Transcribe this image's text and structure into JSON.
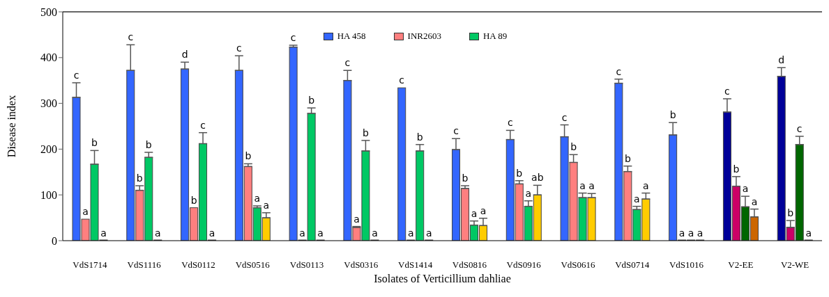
{
  "chart_data": {
    "type": "bar",
    "ylabel": "Disease index",
    "xlabel": "Isolates of Verticillium dahliae",
    "categories": [
      "VdS1714",
      "VdS1116",
      "VdS0112",
      "VdS0516",
      "VdS0113",
      "VdS0316",
      "VdS1414",
      "VdS0816",
      "VdS0916",
      "VdS0616",
      "VdS0714",
      "VdS1016",
      "V2-EE",
      "V2-WE"
    ],
    "ylim": [
      0,
      500
    ],
    "yticks": [
      0,
      100,
      200,
      300,
      400,
      500
    ],
    "grid": false,
    "legend": "top",
    "series": [
      {
        "name": "HA 458",
        "color": "#3366ff",
        "colors": [
          "#3366ff",
          "#3366ff",
          "#3366ff",
          "#3366ff",
          "#3366ff",
          "#3366ff",
          "#3366ff",
          "#3366ff",
          "#3366ff",
          "#3366ff",
          "#3366ff",
          "#3366ff",
          "#000099",
          "#000099"
        ],
        "values": [
          313,
          372,
          375,
          372,
          423,
          350,
          334,
          199,
          221,
          227,
          344,
          231,
          281,
          359
        ],
        "errors": [
          [
            313,
            345
          ],
          [
            372,
            428
          ],
          [
            375,
            390
          ],
          [
            372,
            404
          ],
          [
            423,
            427
          ],
          [
            350,
            372
          ],
          null,
          [
            199,
            223
          ],
          [
            221,
            241
          ],
          [
            227,
            253
          ],
          [
            344,
            353
          ],
          [
            231,
            258
          ],
          [
            281,
            310
          ],
          [
            359,
            378
          ]
        ],
        "value_labels": [
          "c",
          "c",
          "d",
          "c",
          "c",
          "c",
          "c",
          "c",
          "c",
          "c",
          "c",
          "b",
          "c",
          "d"
        ]
      },
      {
        "name": "INR2603",
        "color": "#ff7f7f",
        "colors": [
          "#ff7f7f",
          "#ff7f7f",
          "#ff7f7f",
          "#ff7f7f",
          "#ff7f7f",
          "#ff7f7f",
          "#ff7f7f",
          "#ff7f7f",
          "#ff7f7f",
          "#ff7f7f",
          "#ff7f7f",
          "#ff7f7f",
          "#cc0066",
          "#cc0066"
        ],
        "values": [
          47,
          110,
          72,
          162,
          0,
          29,
          0,
          114,
          124,
          171,
          151,
          0,
          119,
          29
        ],
        "errors": [
          null,
          [
            110,
            120
          ],
          null,
          [
            162,
            168
          ],
          null,
          [
            29,
            31
          ],
          null,
          [
            114,
            120
          ],
          [
            124,
            131
          ],
          [
            171,
            188
          ],
          [
            151,
            163
          ],
          null,
          [
            119,
            140
          ],
          [
            29,
            44
          ]
        ],
        "value_labels": [
          "a",
          "b",
          "b",
          "b",
          "a",
          "a",
          "a",
          "b",
          "b",
          "b",
          "b",
          "a",
          "b",
          "b"
        ]
      },
      {
        "name": "HA 89",
        "color": "#00c864",
        "colors": [
          "#00c864",
          "#00c864",
          "#00c864",
          "#00c864",
          "#00c864",
          "#00c864",
          "#00c864",
          "#00c864",
          "#00c864",
          "#00c864",
          "#00c864",
          "#00c864",
          "#006600",
          "#006600"
        ],
        "values": [
          167,
          182,
          212,
          72,
          278,
          196,
          196,
          34,
          75,
          94,
          68,
          0,
          74,
          210
        ],
        "errors": [
          [
            167,
            197
          ],
          [
            182,
            193
          ],
          [
            212,
            236
          ],
          [
            72,
            76
          ],
          [
            278,
            290
          ],
          [
            196,
            219
          ],
          [
            196,
            210
          ],
          [
            34,
            43
          ],
          [
            75,
            87
          ],
          [
            94,
            104
          ],
          [
            68,
            75
          ],
          null,
          [
            74,
            97
          ],
          [
            210,
            228
          ]
        ],
        "value_labels": [
          "b",
          "b",
          "c",
          "a",
          "b",
          "b",
          "b",
          "a",
          "a",
          "a",
          "a",
          "a",
          "a",
          "c"
        ]
      },
      {
        "color": "#ffcc00",
        "colors": [
          "#ffcc00",
          "#ffcc00",
          "#ffcc00",
          "#ffcc00",
          "#ffcc00",
          "#ffcc00",
          "#ffcc00",
          "#ffcc00",
          "#ffcc00",
          "#ffcc00",
          "#ffcc00",
          "#ffcc00",
          "#cc6600",
          "#cc6600"
        ],
        "values": [
          0,
          0,
          0,
          50,
          0,
          0,
          0,
          33,
          100,
          94,
          91,
          0,
          52,
          0
        ],
        "errors": [
          null,
          null,
          null,
          [
            50,
            61
          ],
          null,
          null,
          null,
          [
            33,
            49
          ],
          [
            100,
            121
          ],
          [
            94,
            103
          ],
          [
            91,
            104
          ],
          null,
          [
            52,
            69
          ],
          null
        ],
        "value_labels": [
          "a",
          "a",
          "a",
          "a",
          "a",
          "a",
          "a",
          "a",
          "ab",
          "a",
          "a",
          "a",
          "a",
          "a"
        ]
      }
    ]
  }
}
